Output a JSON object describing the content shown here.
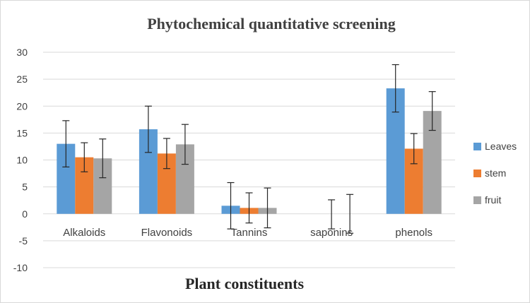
{
  "chart_data": {
    "type": "bar",
    "title": "Phytochemical quantitative screening",
    "xlabel": "Plant constituents",
    "ylabel": "",
    "categories": [
      "Alkaloids",
      "Flavonoids",
      "Tannins",
      "saponins",
      "phenols"
    ],
    "ylim": [
      -10,
      30
    ],
    "yticks": [
      -10,
      -5,
      0,
      5,
      10,
      15,
      20,
      25,
      30
    ],
    "grid": true,
    "legend_position": "right",
    "series": [
      {
        "name": "Leaves",
        "color": "#5B9BD5",
        "values": [
          13.0,
          15.7,
          1.5,
          0.0,
          23.3
        ],
        "errors": [
          4.3,
          4.3,
          4.3,
          0.0,
          4.4
        ]
      },
      {
        "name": "stem",
        "color": "#ED7D31",
        "values": [
          10.5,
          11.2,
          1.1,
          0.0,
          12.1
        ],
        "errors": [
          2.7,
          2.8,
          2.8,
          2.7,
          2.8
        ]
      },
      {
        "name": "fruit",
        "color": "#A5A5A5",
        "values": [
          10.3,
          12.9,
          1.1,
          0.0,
          19.1
        ],
        "errors": [
          3.6,
          3.7,
          3.7,
          3.6,
          3.6
        ]
      }
    ],
    "error_bar_centers": {
      "saponins": [
        0.0,
        -0.1,
        0.0
      ]
    }
  }
}
